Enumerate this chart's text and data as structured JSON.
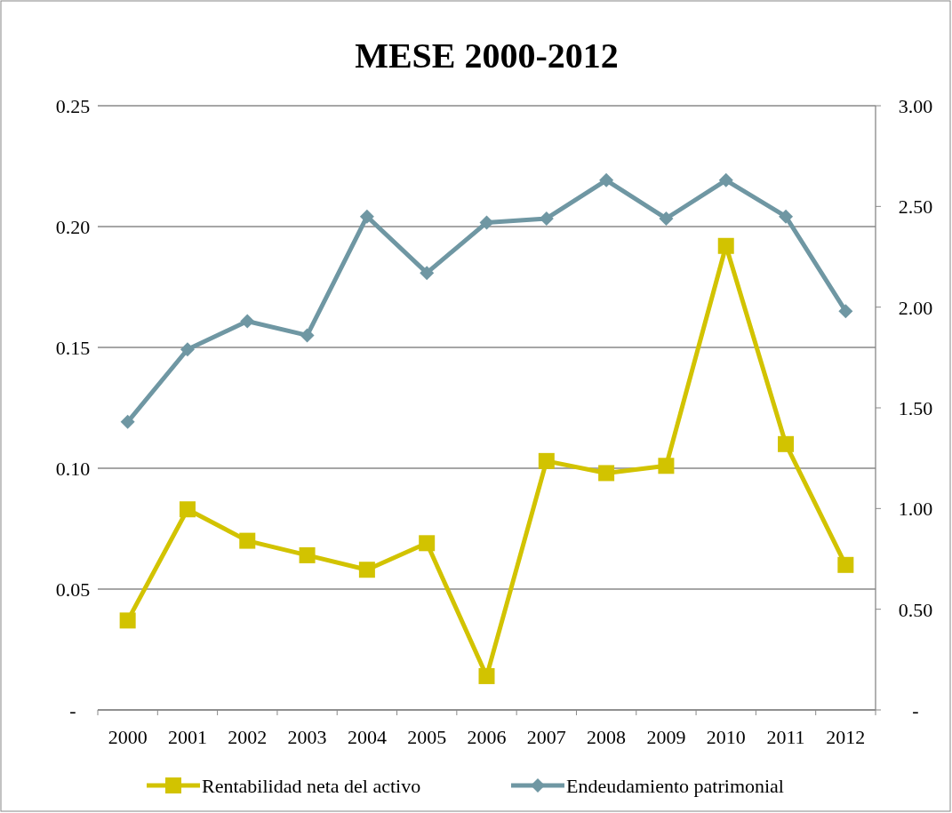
{
  "chart_data": {
    "type": "line",
    "title": "MESE 2000-2012",
    "categories": [
      "2000",
      "2001",
      "2002",
      "2003",
      "2004",
      "2005",
      "2006",
      "2007",
      "2008",
      "2009",
      "2010",
      "2011",
      "2012"
    ],
    "series": [
      {
        "name": "Rentabilidad neta del activo",
        "color": "#d2c300",
        "marker": "square",
        "values": [
          0.037,
          0.083,
          0.07,
          0.064,
          0.058,
          0.069,
          0.014,
          0.103,
          0.098,
          0.101,
          0.192,
          0.11,
          0.06
        ]
      },
      {
        "name": "Endeudamiento patrimonial",
        "color": "#6f97a3",
        "marker": "diamond",
        "axis": "y2",
        "values": [
          1.43,
          1.79,
          1.93,
          1.86,
          2.45,
          2.17,
          2.42,
          2.44,
          2.63,
          2.44,
          2.63,
          2.45,
          1.98
        ]
      }
    ],
    "ylim": [
      0,
      0.25
    ],
    "yticks": [
      {
        "value": 0,
        "label": "-"
      },
      0.05,
      {
        "value": 0.1,
        "label": "0.10"
      },
      0.15,
      {
        "value": 0.2,
        "label": "0.20"
      },
      0.25
    ],
    "y2lim": [
      0,
      3
    ],
    "y2ticks": [
      {
        "value": 0,
        "label": "-"
      },
      {
        "value": 0.5,
        "label": "0.50"
      },
      {
        "value": 1,
        "label": "1.00"
      },
      {
        "value": 1.5,
        "label": "1.50"
      },
      {
        "value": 2,
        "label": "2.00"
      },
      {
        "value": 2.5,
        "label": "2.50"
      },
      {
        "value": 3,
        "label": "3.00"
      }
    ],
    "grid": "y",
    "legend": "bottom",
    "line_style": "solid"
  }
}
